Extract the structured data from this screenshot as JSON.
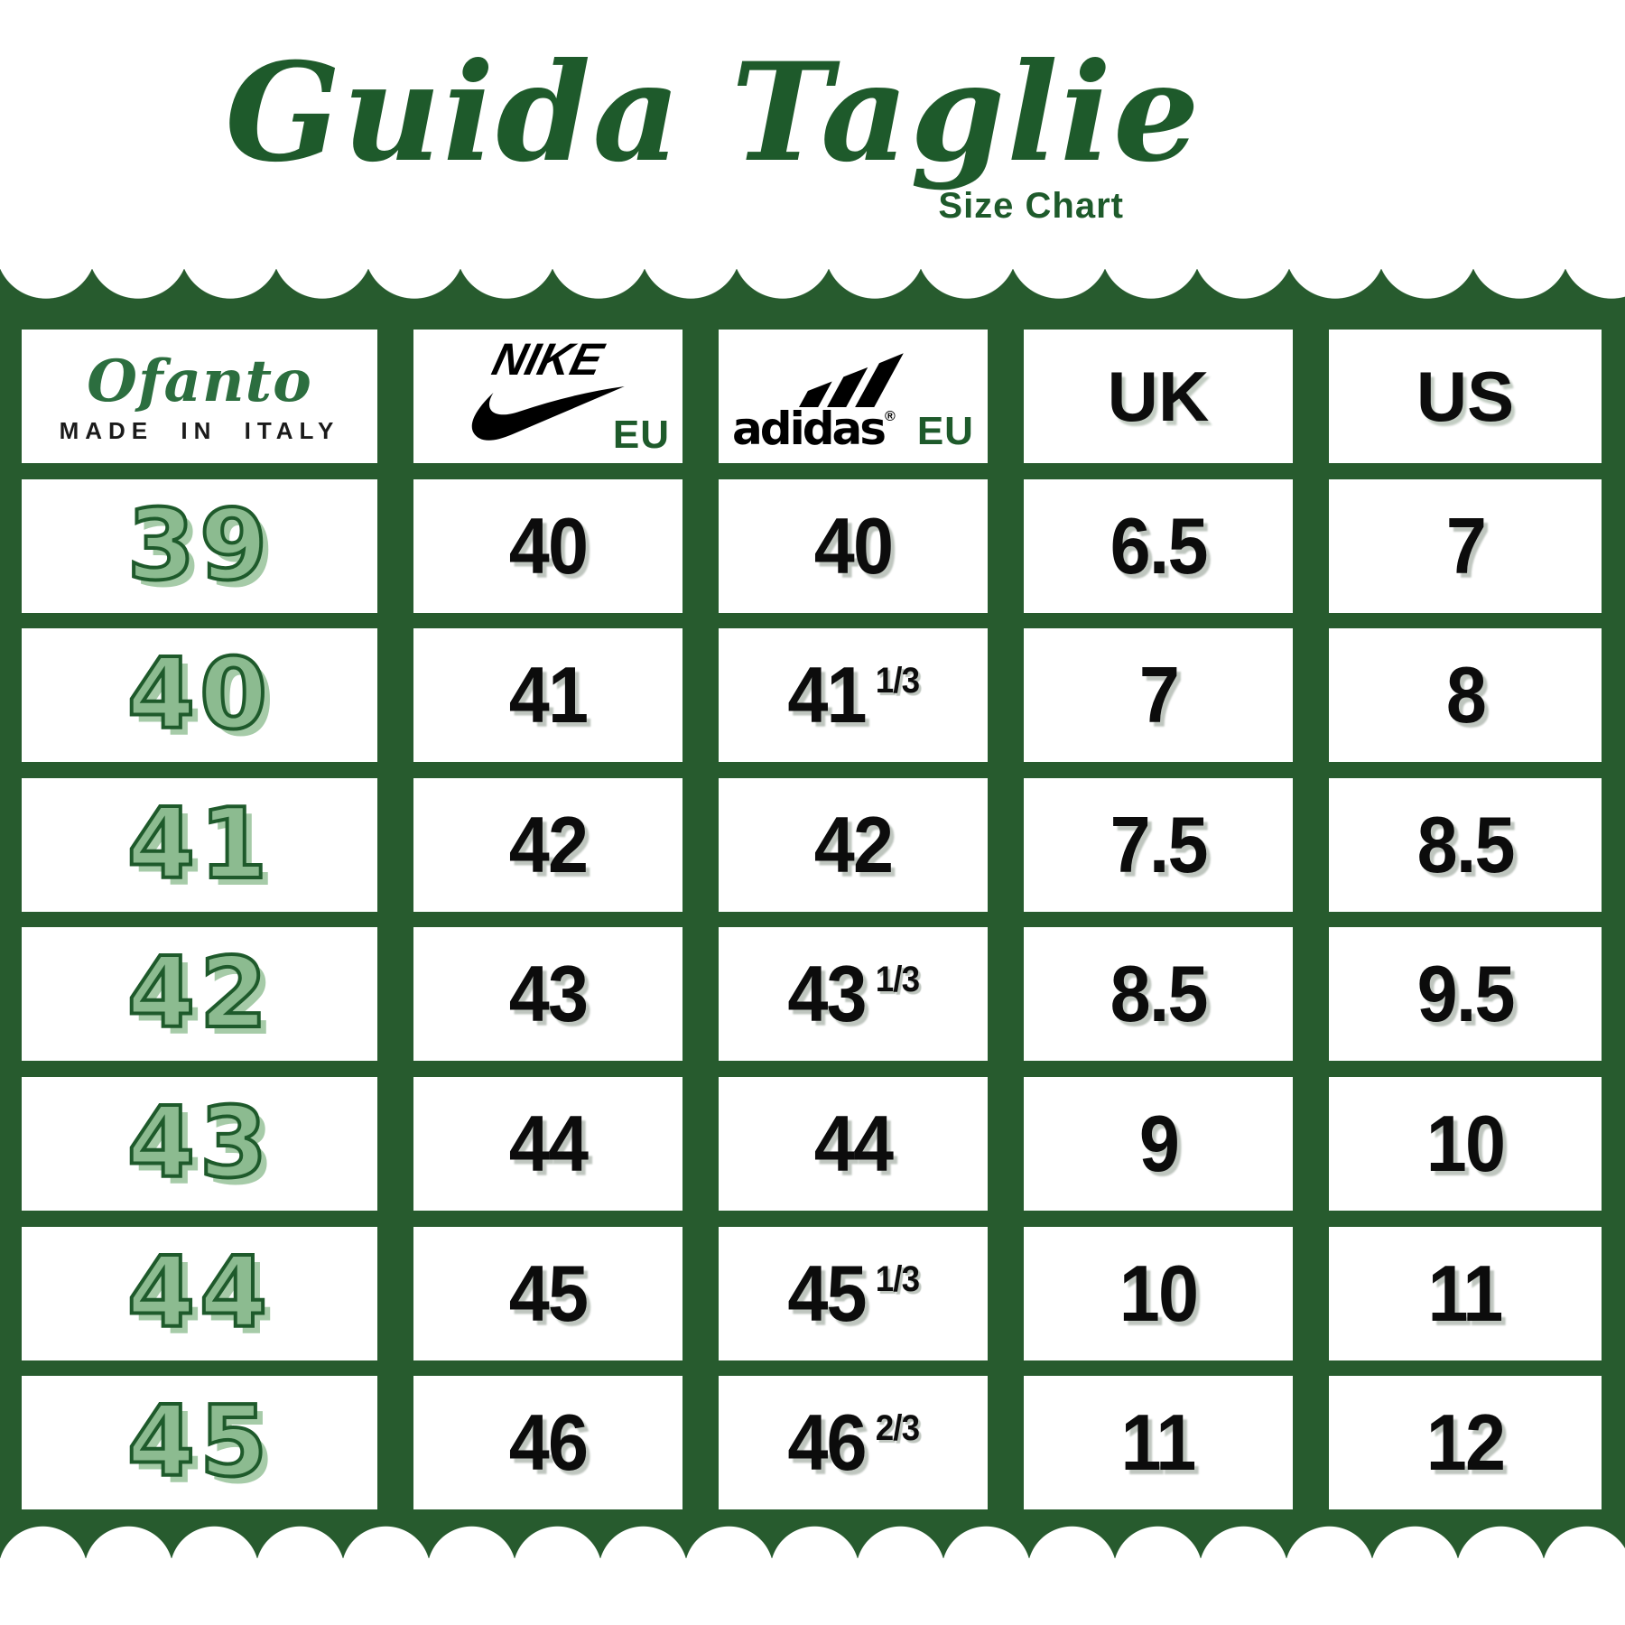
{
  "title": "Guida Taglie",
  "subtitle": "Size Chart",
  "colors": {
    "band_green": "#275b2e",
    "dark_green_text": "#1e5a2b",
    "light_green_fill": "#8cbb90",
    "light_green_shadow": "#a6cba8",
    "gray_shadow": "#bfc6bf",
    "black_text": "#0c0c0c"
  },
  "header": {
    "ofanto": {
      "brand": "Ofanto",
      "tagline": "MADE IN ITALY"
    },
    "nike": {
      "brand": "NIKE",
      "region": "EU"
    },
    "adidas": {
      "brand": "adidas",
      "reg_mark": "®",
      "region": "EU"
    },
    "uk_label": "UK",
    "us_label": "US"
  },
  "icons": {
    "nike_swoosh": "nike-swoosh-icon",
    "adidas_mountain": "adidas-performance-logo-icon"
  },
  "rows": [
    {
      "ofanto": "39",
      "nike": "40",
      "adidas_main": "40",
      "adidas_frac": "",
      "uk": "6.5",
      "us": "7"
    },
    {
      "ofanto": "40",
      "nike": "41",
      "adidas_main": "41",
      "adidas_frac": "1/3",
      "uk": "7",
      "us": "8"
    },
    {
      "ofanto": "41",
      "nike": "42",
      "adidas_main": "42",
      "adidas_frac": "",
      "uk": "7.5",
      "us": "8.5"
    },
    {
      "ofanto": "42",
      "nike": "43",
      "adidas_main": "43",
      "adidas_frac": "1/3",
      "uk": "8.5",
      "us": "9.5"
    },
    {
      "ofanto": "43",
      "nike": "44",
      "adidas_main": "44",
      "adidas_frac": "",
      "uk": "9",
      "us": "10"
    },
    {
      "ofanto": "44",
      "nike": "45",
      "adidas_main": "45",
      "adidas_frac": "1/3",
      "uk": "10",
      "us": "11"
    },
    {
      "ofanto": "45",
      "nike": "46",
      "adidas_main": "46",
      "adidas_frac": "2/3",
      "uk": "11",
      "us": "12"
    }
  ],
  "chart_data": {
    "type": "table",
    "title": "Guida Taglie (Size Chart)",
    "columns": [
      "Ofanto MADE IN ITALY",
      "Nike EU",
      "Adidas EU",
      "UK",
      "US"
    ],
    "rows": [
      [
        "39",
        "40",
        "40",
        "6.5",
        "7"
      ],
      [
        "40",
        "41",
        "41 1/3",
        "7",
        "8"
      ],
      [
        "41",
        "42",
        "42",
        "7.5",
        "8.5"
      ],
      [
        "42",
        "43",
        "43 1/3",
        "8.5",
        "9.5"
      ],
      [
        "43",
        "44",
        "44",
        "9",
        "10"
      ],
      [
        "44",
        "45",
        "45 1/3",
        "10",
        "11"
      ],
      [
        "45",
        "46",
        "46 2/3",
        "11",
        "12"
      ]
    ]
  }
}
